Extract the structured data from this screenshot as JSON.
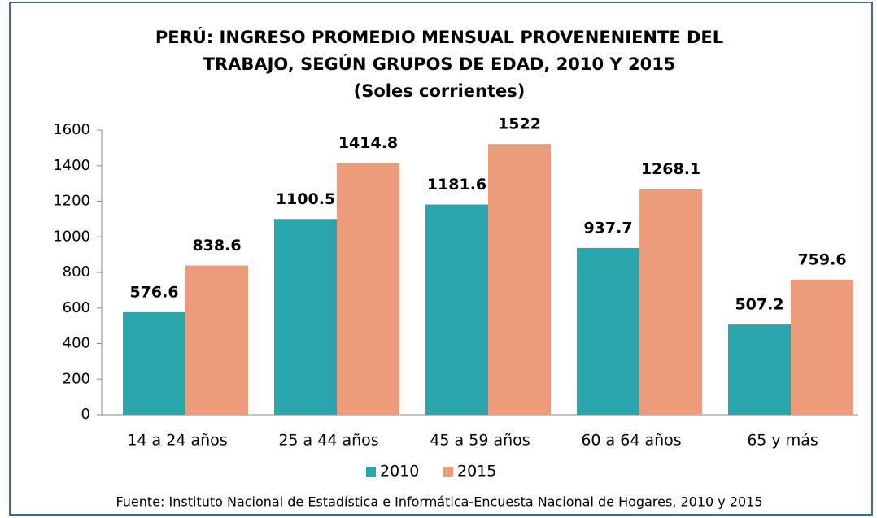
{
  "chart_data": {
    "type": "bar",
    "title": [
      "PERÚ: INGRESO PROMEDIO MENSUAL PROVENENIENTE DEL",
      "TRABAJO, SEGÚN GRUPOS DE EDAD, 2010 Y 2015"
    ],
    "subtitle": "(Soles corrientes)",
    "categories": [
      "14 a 24 años",
      "25 a 44 años",
      "45 a 59 años",
      "60 a 64 años",
      "65 y más"
    ],
    "series": [
      {
        "name": "2010",
        "color": "#2aa6ad",
        "values": [
          576.6,
          1100.5,
          1181.6,
          937.7,
          507.2
        ]
      },
      {
        "name": "2015",
        "color": "#eb9c7b",
        "values": [
          838.6,
          1414.8,
          1522,
          1268.1,
          759.6
        ]
      }
    ],
    "ylim": [
      0,
      1600
    ],
    "yticks": [
      0,
      200,
      400,
      600,
      800,
      1000,
      1200,
      1400,
      1600
    ],
    "grid": false,
    "legend": "bottom",
    "source": "Fuente: Instituto Nacional de Estadística e Informática-Encuesta Nacional de Hogares, 2010 y 2015"
  }
}
